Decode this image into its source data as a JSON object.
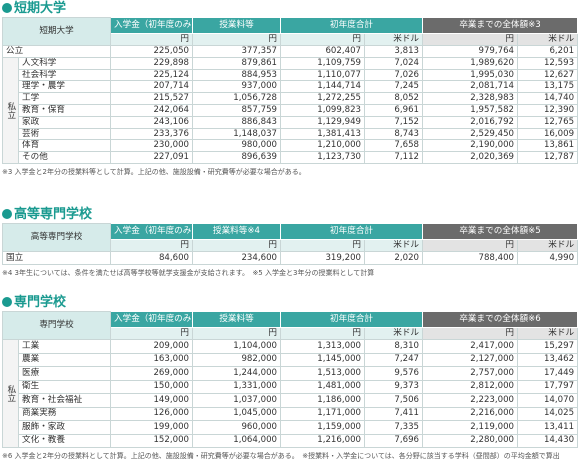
{
  "sections": [
    {
      "title": "短期大学",
      "headers": [
        "短期大学",
        "入学金（初年度のみ）",
        "授業料等",
        "初年度合計",
        "卒業までの全体額※3"
      ],
      "units": [
        "円",
        "円",
        "円",
        "米ドル",
        "円",
        "米ドル"
      ],
      "rows": [
        {
          "label": "公立",
          "cells": [
            "225,050",
            "377,357",
            "602,407",
            "3,813",
            "979,764",
            "6,201"
          ]
        }
      ],
      "group": {
        "label": "私立",
        "rows": [
          {
            "label": "人文科学",
            "cells": [
              "229,898",
              "879,861",
              "1,109,759",
              "7,024",
              "1,989,620",
              "12,593"
            ]
          },
          {
            "label": "社会科学",
            "cells": [
              "225,124",
              "884,953",
              "1,110,077",
              "7,026",
              "1,995,030",
              "12,627"
            ]
          },
          {
            "label": "理学・農学",
            "cells": [
              "207,714",
              "937,000",
              "1,144,714",
              "7,245",
              "2,081,714",
              "13,175"
            ]
          },
          {
            "label": "工学",
            "cells": [
              "215,527",
              "1,056,728",
              "1,272,255",
              "8,052",
              "2,328,983",
              "14,740"
            ]
          },
          {
            "label": "教育・保育",
            "cells": [
              "242,064",
              "857,759",
              "1,099,823",
              "6,961",
              "1,957,582",
              "12,390"
            ]
          },
          {
            "label": "家政",
            "cells": [
              "243,106",
              "886,843",
              "1,129,949",
              "7,152",
              "2,016,792",
              "12,765"
            ]
          },
          {
            "label": "芸術",
            "cells": [
              "233,376",
              "1,148,037",
              "1,381,413",
              "8,743",
              "2,529,450",
              "16,009"
            ]
          },
          {
            "label": "体育",
            "cells": [
              "230,000",
              "980,000",
              "1,210,000",
              "7,658",
              "2,190,000",
              "13,861"
            ]
          },
          {
            "label": "その他",
            "cells": [
              "227,091",
              "896,639",
              "1,123,730",
              "7,112",
              "2,020,369",
              "12,787"
            ]
          }
        ]
      },
      "note": "※3 入学金と2年分の授業料等として計算。上記の他、施設設備・研究費等が必要な場合がある。"
    },
    {
      "title": "高等専門学校",
      "headers": [
        "高等専門学校",
        "入学金（初年度のみ）",
        "授業料等※4",
        "初年度合計",
        "卒業までの全体額※5"
      ],
      "units": [
        "円",
        "円",
        "円",
        "米ドル",
        "円",
        "米ドル"
      ],
      "rows": [
        {
          "label": "国立",
          "cells": [
            "84,600",
            "234,600",
            "319,200",
            "2,020",
            "788,400",
            "4,990"
          ]
        }
      ],
      "note": "※4 3年生については、条件を満たせば高等学校等就学支援金が支給されます。　※5 入学金と3年分の授業料として計算"
    },
    {
      "title": "専門学校",
      "headers": [
        "専門学校",
        "入学金（初年度のみ）",
        "授業料等",
        "初年度合計",
        "卒業までの全体額※6"
      ],
      "units": [
        "円",
        "円",
        "円",
        "米ドル",
        "円",
        "米ドル"
      ],
      "rows": [],
      "group": {
        "label": "私立",
        "rows": [
          {
            "label": "工業",
            "cells": [
              "209,000",
              "1,104,000",
              "1,313,000",
              "8,310",
              "2,417,000",
              "15,297"
            ]
          },
          {
            "label": "農業",
            "cells": [
              "163,000",
              "982,000",
              "1,145,000",
              "7,247",
              "2,127,000",
              "13,462"
            ]
          },
          {
            "label": "医療",
            "cells": [
              "269,000",
              "1,244,000",
              "1,513,000",
              "9,576",
              "2,757,000",
              "17,449"
            ]
          },
          {
            "label": "衛生",
            "cells": [
              "150,000",
              "1,331,000",
              "1,481,000",
              "9,373",
              "2,812,000",
              "17,797"
            ]
          },
          {
            "label": "教育・社会福祉",
            "cells": [
              "149,000",
              "1,037,000",
              "1,186,000",
              "7,506",
              "2,223,000",
              "14,070"
            ]
          },
          {
            "label": "商業実務",
            "cells": [
              "126,000",
              "1,045,000",
              "1,171,000",
              "7,411",
              "2,216,000",
              "14,025"
            ]
          },
          {
            "label": "服飾・家政",
            "cells": [
              "199,000",
              "960,000",
              "1,159,000",
              "7,335",
              "2,119,000",
              "13,411"
            ]
          },
          {
            "label": "文化・教養",
            "cells": [
              "152,000",
              "1,064,000",
              "1,216,000",
              "7,696",
              "2,280,000",
              "14,430"
            ]
          }
        ]
      },
      "note": "※6 入学金と2年分の授業料として計算。上記の他、施設設備・研究費等が必要な場合がある。　※授業料・入学金については、各分野に該当する学科（昼間部）の平均金額で算出"
    }
  ]
}
